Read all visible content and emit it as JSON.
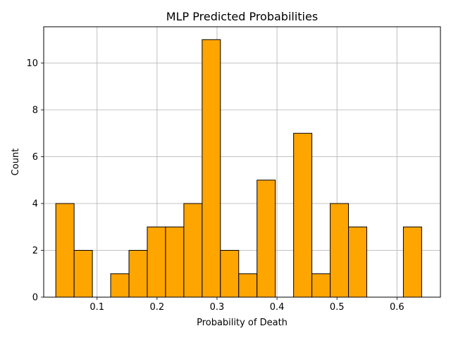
{
  "chart_data": {
    "type": "bar",
    "title": "MLP Predicted Probabilities",
    "xlabel": "Probability of Death",
    "ylabel": "Count",
    "xlim": [
      0.011,
      0.6725
    ],
    "ylim": [
      0,
      11.55
    ],
    "x_ticks": [
      0.1,
      0.2,
      0.3,
      0.4,
      0.5,
      0.6
    ],
    "y_ticks": [
      0,
      2,
      4,
      6,
      8,
      10
    ],
    "grid": true,
    "bin_edges": [
      0.0312,
      0.0617,
      0.0922,
      0.1227,
      0.1532,
      0.1837,
      0.2142,
      0.2447,
      0.2752,
      0.3057,
      0.3362,
      0.3667,
      0.3972,
      0.4277,
      0.4582,
      0.4887,
      0.5192,
      0.5497,
      0.5802,
      0.6107,
      0.6412
    ],
    "counts": [
      4,
      2,
      0,
      1,
      2,
      3,
      3,
      4,
      11,
      2,
      1,
      5,
      0,
      7,
      1,
      4,
      3,
      0,
      0,
      3
    ],
    "bar_color": "#ffa500",
    "edge_color": "#000000",
    "grid_color": "#b0b0b0"
  }
}
